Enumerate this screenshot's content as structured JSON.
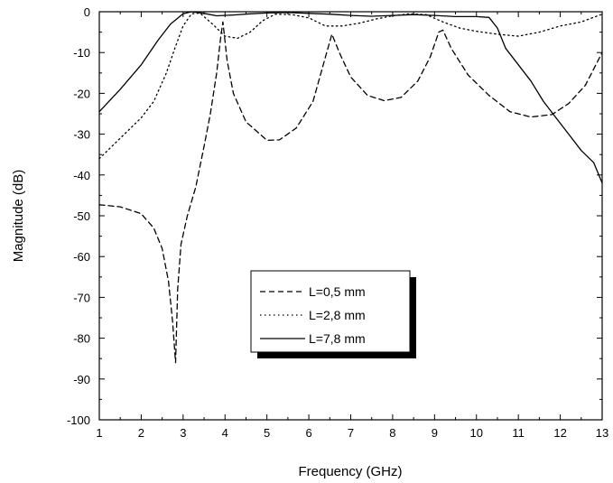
{
  "chart_data": {
    "type": "line",
    "title": "",
    "xlabel": "Frequency (GHz)",
    "ylabel": "Magnitude (dB)",
    "xlim": [
      1,
      13
    ],
    "ylim": [
      -100,
      0
    ],
    "xticks": [
      "1",
      "2",
      "3",
      "4",
      "5",
      "6",
      "7",
      "8",
      "9",
      "10",
      "11",
      "12",
      "13"
    ],
    "yticks": [
      "0",
      "-10",
      "-20",
      "-30",
      "-40",
      "-50",
      "-60",
      "-70",
      "-80",
      "-90",
      "-100"
    ],
    "grid": false,
    "legend_position": "center",
    "series": [
      {
        "name": "L=0,5 mm",
        "style": "dashed",
        "color": "#000000",
        "points": [
          [
            1,
            -47.3
          ],
          [
            1.5,
            -47.8
          ],
          [
            2.0,
            -49.5
          ],
          [
            2.3,
            -53
          ],
          [
            2.5,
            -58
          ],
          [
            2.65,
            -66
          ],
          [
            2.75,
            -76
          ],
          [
            2.82,
            -86
          ],
          [
            2.87,
            -68
          ],
          [
            2.95,
            -57
          ],
          [
            3.1,
            -50
          ],
          [
            3.3,
            -43
          ],
          [
            3.5,
            -33
          ],
          [
            3.65,
            -25
          ],
          [
            3.8,
            -15
          ],
          [
            3.9,
            -6
          ],
          [
            3.95,
            -2.5
          ],
          [
            4.05,
            -12
          ],
          [
            4.2,
            -20
          ],
          [
            4.5,
            -27
          ],
          [
            5.0,
            -31.5
          ],
          [
            5.3,
            -31.4
          ],
          [
            5.7,
            -28.5
          ],
          [
            6.1,
            -22
          ],
          [
            6.4,
            -11
          ],
          [
            6.55,
            -5.5
          ],
          [
            6.75,
            -10.5
          ],
          [
            7.0,
            -16
          ],
          [
            7.4,
            -20.5
          ],
          [
            7.8,
            -21.8
          ],
          [
            8.2,
            -21
          ],
          [
            8.6,
            -17
          ],
          [
            8.9,
            -11
          ],
          [
            9.1,
            -5
          ],
          [
            9.2,
            -4.5
          ],
          [
            9.4,
            -9
          ],
          [
            9.8,
            -15.5
          ],
          [
            10.3,
            -20.5
          ],
          [
            10.8,
            -24.5
          ],
          [
            11.3,
            -25.8
          ],
          [
            11.8,
            -25.2
          ],
          [
            12.2,
            -22.5
          ],
          [
            12.6,
            -18
          ],
          [
            13.0,
            -10
          ]
        ]
      },
      {
        "name": "L=2,8 mm",
        "style": "dotted",
        "color": "#000000",
        "points": [
          [
            1,
            -36
          ],
          [
            1.5,
            -31
          ],
          [
            2.0,
            -26
          ],
          [
            2.3,
            -22
          ],
          [
            2.6,
            -15
          ],
          [
            2.8,
            -9
          ],
          [
            3.0,
            -3.5
          ],
          [
            3.2,
            -0.5
          ],
          [
            3.4,
            -0.3
          ],
          [
            3.7,
            -3
          ],
          [
            4.0,
            -6
          ],
          [
            4.3,
            -6.5
          ],
          [
            4.6,
            -5
          ],
          [
            4.9,
            -2.2
          ],
          [
            5.2,
            -0.6
          ],
          [
            5.6,
            -0.7
          ],
          [
            6.0,
            -1.5
          ],
          [
            6.4,
            -3.5
          ],
          [
            6.8,
            -3.5
          ],
          [
            7.2,
            -2.8
          ],
          [
            7.6,
            -1.8
          ],
          [
            8.0,
            -1.0
          ],
          [
            8.4,
            -0.5
          ],
          [
            8.8,
            -0.7
          ],
          [
            9.2,
            -2.5
          ],
          [
            9.6,
            -4
          ],
          [
            10.0,
            -4.8
          ],
          [
            10.5,
            -5.5
          ],
          [
            11.0,
            -6
          ],
          [
            11.5,
            -5
          ],
          [
            12.0,
            -3.5
          ],
          [
            12.5,
            -2.5
          ],
          [
            13.0,
            -0.6
          ]
        ]
      },
      {
        "name": "L=7,8 mm",
        "style": "solid",
        "color": "#000000",
        "points": [
          [
            1,
            -24.5
          ],
          [
            1.5,
            -19
          ],
          [
            2.0,
            -13
          ],
          [
            2.4,
            -7
          ],
          [
            2.7,
            -3
          ],
          [
            3.0,
            -0.5
          ],
          [
            3.2,
            0
          ],
          [
            3.5,
            -0.4
          ],
          [
            3.8,
            -1
          ],
          [
            4.2,
            -0.8
          ],
          [
            4.6,
            -0.5
          ],
          [
            5.0,
            -0.3
          ],
          [
            5.5,
            -0.2
          ],
          [
            6.0,
            -0.4
          ],
          [
            6.5,
            -0.6
          ],
          [
            7.0,
            -0.9
          ],
          [
            7.5,
            -1.1
          ],
          [
            8.0,
            -0.9
          ],
          [
            8.5,
            -0.7
          ],
          [
            9.0,
            -0.9
          ],
          [
            9.5,
            -1.2
          ],
          [
            10.0,
            -1.2
          ],
          [
            10.3,
            -1.4
          ],
          [
            10.5,
            -4
          ],
          [
            10.7,
            -9
          ],
          [
            11.0,
            -13
          ],
          [
            11.3,
            -17
          ],
          [
            11.6,
            -22
          ],
          [
            11.9,
            -26
          ],
          [
            12.2,
            -30
          ],
          [
            12.5,
            -34
          ],
          [
            12.8,
            -37
          ],
          [
            13.0,
            -42
          ]
        ]
      }
    ]
  }
}
